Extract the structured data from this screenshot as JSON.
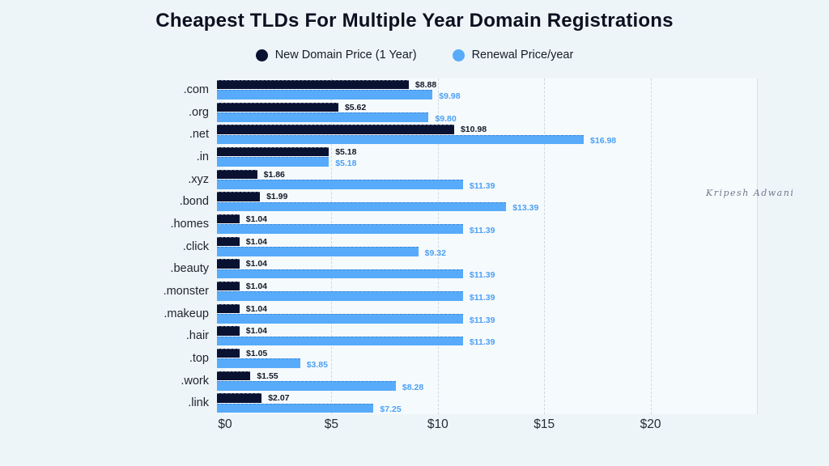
{
  "page": {
    "background": "#eef5f9",
    "plot_background": "#f5fafc",
    "watermark": "Kripesh Adwani"
  },
  "chart_data": {
    "type": "bar",
    "orientation": "horizontal",
    "title": "Cheapest TLDs For Multiple Year Domain Registrations",
    "xlabel": "",
    "ylabel": "",
    "xlim": [
      0,
      25
    ],
    "grid": "vertical-dashed",
    "legend_position": "top-center",
    "categories": [
      ".com",
      ".org",
      ".net",
      ".in",
      ".xyz",
      ".bond",
      ".homes",
      ".click",
      ".beauty",
      ".monster",
      ".makeup",
      ".hair",
      ".top",
      ".work",
      ".link"
    ],
    "series": [
      {
        "name": "New Domain Price (1 Year)",
        "color": "#0a1232",
        "label_color": "#141a28",
        "values": [
          8.88,
          5.62,
          10.98,
          5.18,
          1.86,
          1.99,
          1.04,
          1.04,
          1.04,
          1.04,
          1.04,
          1.04,
          1.05,
          1.55,
          2.07
        ],
        "labels": [
          "$8.88",
          "$5.62",
          "$10.98",
          "$5.18",
          "$1.86",
          "$1.99",
          "$1.04",
          "$1.04",
          "$1.04",
          "$1.04",
          "$1.04",
          "$1.04",
          "$1.05",
          "$1.55",
          "$2.07"
        ]
      },
      {
        "name": "Renewal Price/year",
        "color": "#57abfa",
        "label_color": "#4da0f5",
        "values": [
          9.98,
          9.8,
          16.98,
          5.18,
          11.39,
          13.39,
          11.39,
          9.32,
          11.39,
          11.39,
          11.39,
          11.39,
          3.85,
          8.28,
          7.25
        ],
        "labels": [
          "$9.98",
          "$9.80",
          "$16.98",
          "$5.18",
          "$11.39",
          "$13.39",
          "$11.39",
          "$9.32",
          "$11.39",
          "$11.39",
          "$11.39",
          "$11.39",
          "$3.85",
          "$8.28",
          "$7.25"
        ]
      }
    ],
    "x_ticks": [
      "$0",
      "$5",
      "$10",
      "$15",
      "$20"
    ],
    "x_tick_values": [
      0,
      5,
      10,
      15,
      20
    ]
  }
}
